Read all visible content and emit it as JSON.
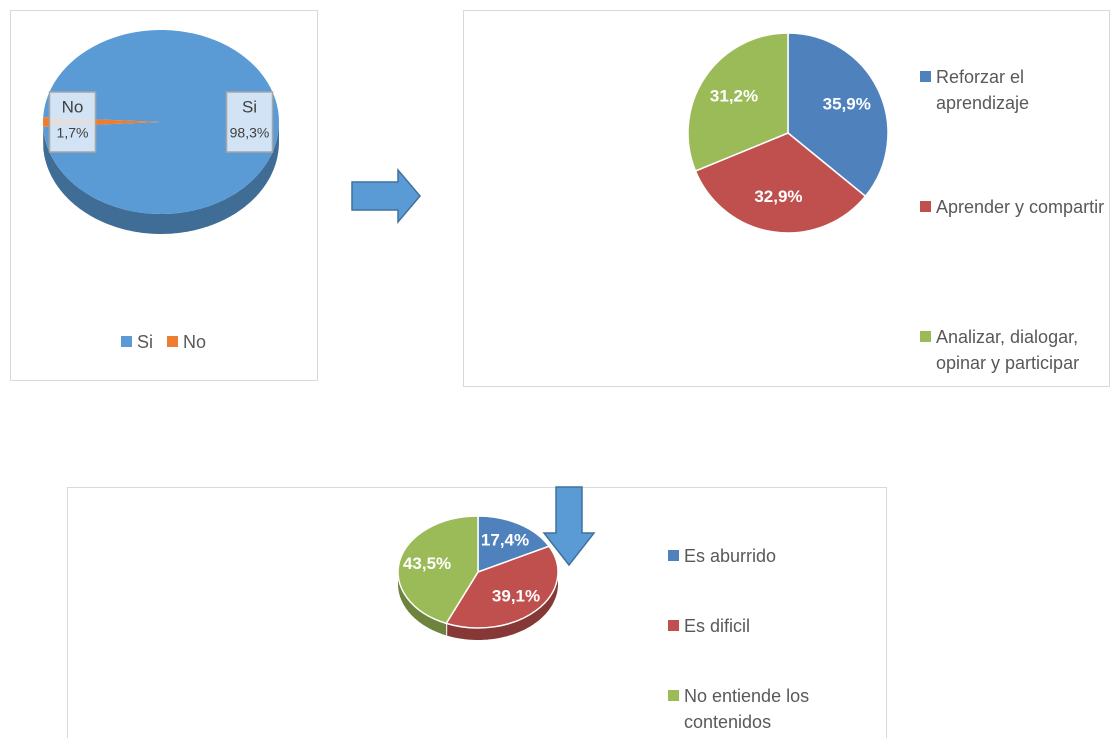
{
  "chart_data": [
    {
      "type": "pie",
      "categories": [
        "Si",
        "No"
      ],
      "values": [
        98.3,
        1.7
      ],
      "value_labels": [
        "98,3%",
        "1,7%"
      ],
      "colors": [
        "#5b9bd5",
        "#ed7d31"
      ],
      "legend": "bottom",
      "three_d": true
    },
    {
      "type": "pie",
      "categories": [
        "Reforzar el aprendizaje",
        "Aprender y compartir",
        "Analizar, dialogar, opinar y participar"
      ],
      "values": [
        35.9,
        32.9,
        31.2
      ],
      "value_labels": [
        "35,9%",
        "32,9%",
        "31,2%"
      ],
      "colors": [
        "#4f81bd",
        "#c0504d",
        "#9bbb59"
      ],
      "legend": "right",
      "three_d": false
    },
    {
      "type": "pie",
      "categories": [
        "Es aburrido",
        "Es dificil",
        "No entiende los contenidos"
      ],
      "values": [
        17.4,
        39.1,
        43.5
      ],
      "value_labels": [
        "17,4%",
        "39,1%",
        "43,5%"
      ],
      "colors": [
        "#4f81bd",
        "#c0504d",
        "#9bbb59"
      ],
      "legend": "right",
      "three_d": true
    }
  ]
}
